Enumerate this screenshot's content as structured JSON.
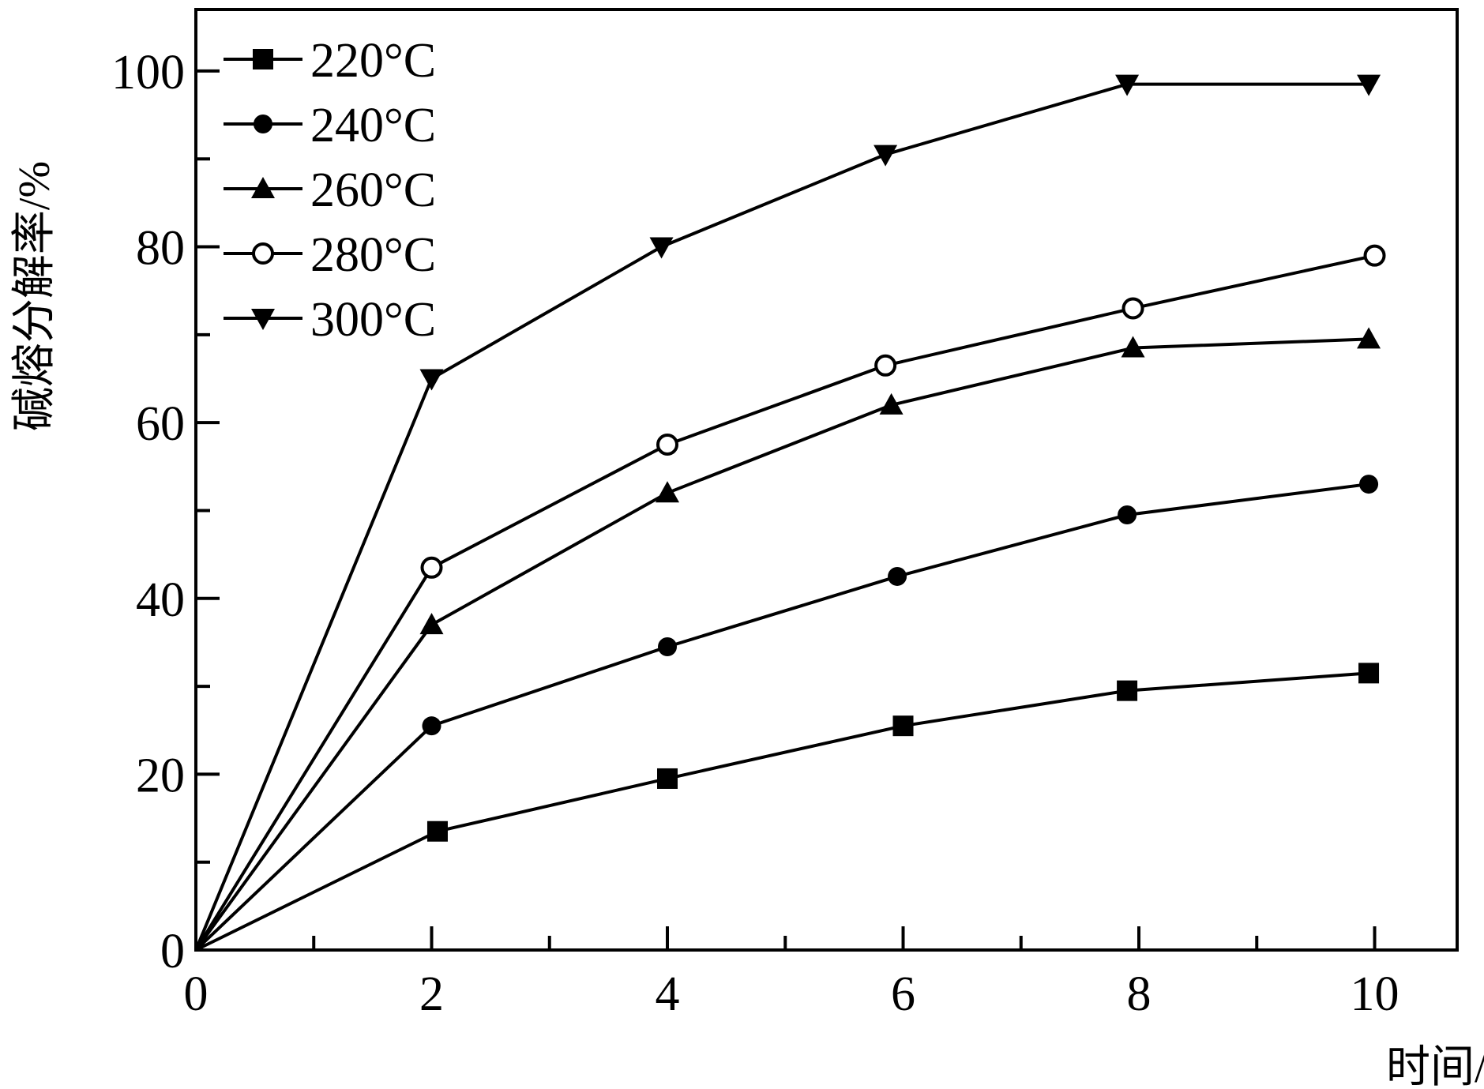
{
  "chart_data": {
    "type": "line",
    "title": "",
    "xlabel": "时间/h",
    "ylabel": "碱熔分解率/%",
    "xlim": [
      0,
      10.7
    ],
    "ylim": [
      0,
      107
    ],
    "x_ticks": [
      0,
      2,
      4,
      6,
      8,
      10
    ],
    "x_tick_labels": [
      "0",
      "2",
      "4",
      "6",
      "8",
      "10"
    ],
    "y_ticks": [
      0,
      20,
      40,
      60,
      80,
      100
    ],
    "y_tick_labels": [
      "0",
      "20",
      "40",
      "60",
      "80",
      "100"
    ],
    "grid": false,
    "legend_position": "top-left",
    "series": [
      {
        "name": "220°C",
        "marker": "square",
        "x": [
          0,
          2.05,
          4,
          6,
          7.9,
          9.95
        ],
        "y": [
          0,
          13.5,
          19.5,
          25.5,
          29.5,
          31.5
        ]
      },
      {
        "name": "240°C",
        "marker": "circle",
        "x": [
          0,
          2,
          4,
          5.95,
          7.9,
          9.95
        ],
        "y": [
          0,
          25.5,
          34.5,
          42.5,
          49.5,
          53
        ]
      },
      {
        "name": "260°C",
        "marker": "triangle-up",
        "x": [
          0,
          2,
          4,
          5.9,
          7.95,
          9.95
        ],
        "y": [
          0,
          37,
          52,
          62,
          68.5,
          69.5
        ]
      },
      {
        "name": "280°C",
        "marker": "open-circle",
        "x": [
          0,
          2,
          4,
          5.85,
          7.95,
          10
        ],
        "y": [
          0,
          43.5,
          57.5,
          66.5,
          73,
          79
        ]
      },
      {
        "name": "300°C",
        "marker": "triangle-down",
        "x": [
          0,
          2,
          3.95,
          5.85,
          7.9,
          9.95
        ],
        "y": [
          0,
          65,
          80,
          90.5,
          98.5,
          98.5
        ]
      }
    ]
  }
}
